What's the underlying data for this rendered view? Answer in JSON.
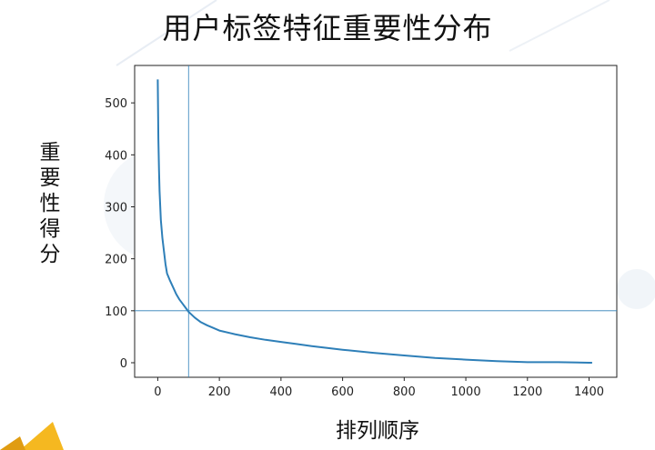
{
  "title": "用户标签特征重要性分布",
  "colors": {
    "line": "#2e7fb8",
    "reference_lines": "#2e7fb8",
    "axes": "#222222",
    "logo": "#f5b820"
  },
  "chart_data": {
    "type": "line",
    "title": "用户标签特征重要性分布",
    "xlabel": "排列顺序",
    "ylabel": "重要性得分",
    "xlim": [
      -75,
      1490
    ],
    "ylim": [
      -28,
      572
    ],
    "xticks": [
      0,
      200,
      400,
      600,
      800,
      1000,
      1200,
      1400
    ],
    "yticks": [
      0,
      100,
      200,
      300,
      400,
      500
    ],
    "grid": false,
    "reference_lines": {
      "vertical_x": 100,
      "horizontal_y": 100
    },
    "series": [
      {
        "x": [
          0,
          2,
          4,
          6,
          10,
          15,
          20,
          25,
          30,
          40,
          50,
          60,
          70,
          80,
          90,
          100,
          120,
          140,
          160,
          180,
          200,
          250,
          300,
          350,
          400,
          450,
          500,
          600,
          700,
          800,
          900,
          1000,
          1100,
          1200,
          1300,
          1400,
          1410
        ],
        "y": [
          545,
          430,
          370,
          330,
          275,
          240,
          215,
          190,
          172,
          158,
          145,
          132,
          122,
          114,
          106,
          98,
          87,
          78,
          72,
          67,
          62,
          55,
          49,
          44,
          40,
          36,
          32,
          25,
          19,
          14,
          9,
          6,
          3,
          1,
          1,
          0,
          0
        ]
      }
    ]
  }
}
